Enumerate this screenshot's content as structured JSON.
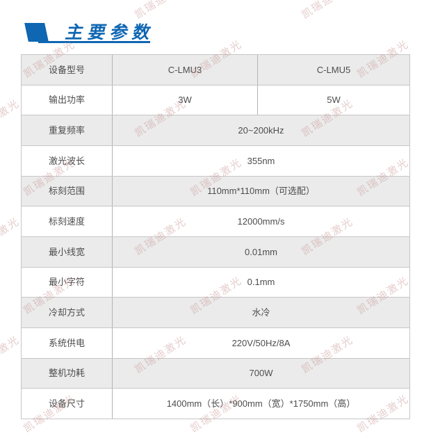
{
  "header": {
    "title": "主要参数"
  },
  "watermark": {
    "text": "凯瑞迪激光"
  },
  "colors": {
    "accent": "#0f66b2",
    "row_alt": "#ebebeb",
    "border": "#c6c6c6",
    "vertical_border": "#b3b3b3",
    "text": "#4d4d4d",
    "watermark": "rgba(197,142,142,0.45)"
  },
  "table": {
    "rows": [
      {
        "label": "设备型号",
        "values": [
          "C-LMU3",
          "C-LMU5"
        ]
      },
      {
        "label": "输出功率",
        "values": [
          "3W",
          "5W"
        ]
      },
      {
        "label": "重复频率",
        "value": "20~200kHz"
      },
      {
        "label": "激光波长",
        "value": "355nm"
      },
      {
        "label": "标刻范围",
        "value": "110mm*110mm（可选配）"
      },
      {
        "label": "标刻速度",
        "value": "12000mm/s"
      },
      {
        "label": "最小线宽",
        "value": "0.01mm"
      },
      {
        "label": "最小字符",
        "value": "0.1mm"
      },
      {
        "label": "冷却方式",
        "value": "水冷"
      },
      {
        "label": "系统供电",
        "value": "220V/50Hz/8A"
      },
      {
        "label": "整机功耗",
        "value": "700W"
      },
      {
        "label": "设备尺寸",
        "value": "1400mm（长）*900mm（宽）*1750mm（高）"
      }
    ]
  }
}
